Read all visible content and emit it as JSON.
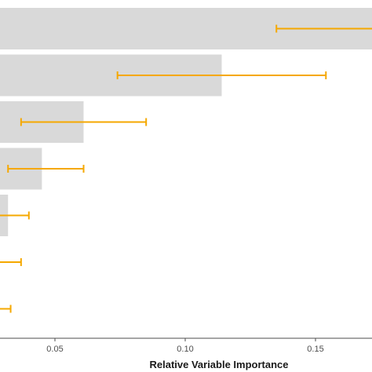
{
  "chart_data": {
    "type": "bar",
    "orientation": "horizontal",
    "xlabel": "Relative Variable Importance",
    "ylabel": "",
    "xlim": [
      0.03,
      0.17
    ],
    "xticks": [
      0.05,
      0.1,
      0.15
    ],
    "xtick_labels": [
      "0.05",
      "0.10",
      "0.15"
    ],
    "grid": false,
    "legend": "none",
    "bars": [
      {
        "value": 0.172,
        "err_low": 0.135,
        "err_high": 0.178
      },
      {
        "value": 0.114,
        "err_low": 0.074,
        "err_high": 0.154
      },
      {
        "value": 0.061,
        "err_low": 0.037,
        "err_high": 0.085
      },
      {
        "value": 0.045,
        "err_low": 0.032,
        "err_high": 0.061
      },
      {
        "value": 0.032,
        "err_low": 0.027,
        "err_high": 0.04
      },
      {
        "value": 0.024,
        "err_low": 0.018,
        "err_high": 0.037
      },
      {
        "value": 0.019,
        "err_low": 0.012,
        "err_high": 0.033
      }
    ],
    "colors": {
      "bar": "#d9d9d9",
      "error_bar": "#f5a800",
      "axis": "#4d4d4d"
    }
  }
}
